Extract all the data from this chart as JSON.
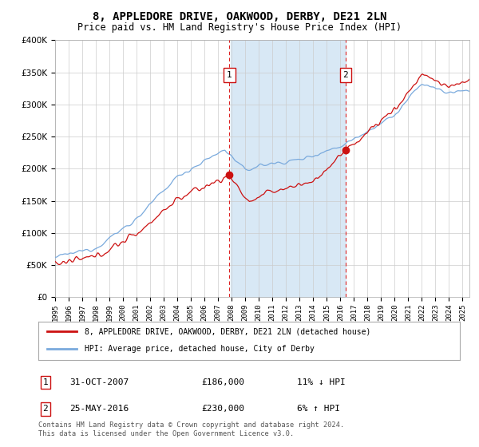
{
  "title": "8, APPLEDORE DRIVE, OAKWOOD, DERBY, DE21 2LN",
  "subtitle": "Price paid vs. HM Land Registry's House Price Index (HPI)",
  "hpi_label": "HPI: Average price, detached house, City of Derby",
  "price_label": "8, APPLEDORE DRIVE, OAKWOOD, DERBY, DE21 2LN (detached house)",
  "sale1_date": "31-OCT-2007",
  "sale1_price": 186000,
  "sale1_pct": "11% ↓ HPI",
  "sale1_x_year": 2007.83,
  "sale2_date": "25-MAY-2016",
  "sale2_price": 230000,
  "sale2_pct": "6% ↑ HPI",
  "sale2_x_year": 2016.38,
  "ylim": [
    0,
    400000
  ],
  "yticks": [
    0,
    50000,
    100000,
    150000,
    200000,
    250000,
    300000,
    350000,
    400000
  ],
  "xlim_start": 1995,
  "xlim_end": 2025.5,
  "background_color": "#ffffff",
  "plot_bg": "#ffffff",
  "hpi_color": "#7aaadd",
  "price_color": "#cc1111",
  "vline_color": "#dd2222",
  "fill_color": "#d8e8f5",
  "footer": "Contains HM Land Registry data © Crown copyright and database right 2024.\nThis data is licensed under the Open Government Licence v3.0."
}
